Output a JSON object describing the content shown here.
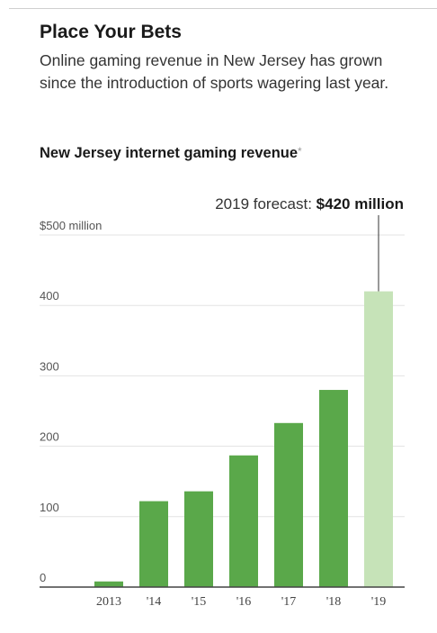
{
  "header": {
    "title": "Place Your Bets",
    "subtitle": "Online gaming revenue in New Jersey has grown since the introduction of sports wagering last year.",
    "chart_title": "New Jersey internet gaming revenue",
    "chart_title_mark": "*"
  },
  "colors": {
    "bar": "#5aa84a",
    "bar_forecast": "#c6e3b8",
    "grid": "#e3e3e3",
    "axis": "#444444"
  },
  "chart_data": {
    "type": "bar",
    "title": "New Jersey internet gaming revenue",
    "categories": [
      "2013",
      "'14",
      "'15",
      "'16",
      "'17",
      "'18",
      "'19"
    ],
    "values": [
      8,
      122,
      136,
      187,
      233,
      280,
      420
    ],
    "forecast_index": 6,
    "ylim": [
      0,
      500
    ],
    "yticks": [
      0,
      100,
      200,
      300,
      400,
      500
    ],
    "ytick_labels": [
      "0",
      "100",
      "200",
      "300",
      "400",
      "$500 million"
    ],
    "grid": true,
    "annotation": {
      "prefix": "2019 forecast: ",
      "value_text": "$420 million"
    }
  }
}
